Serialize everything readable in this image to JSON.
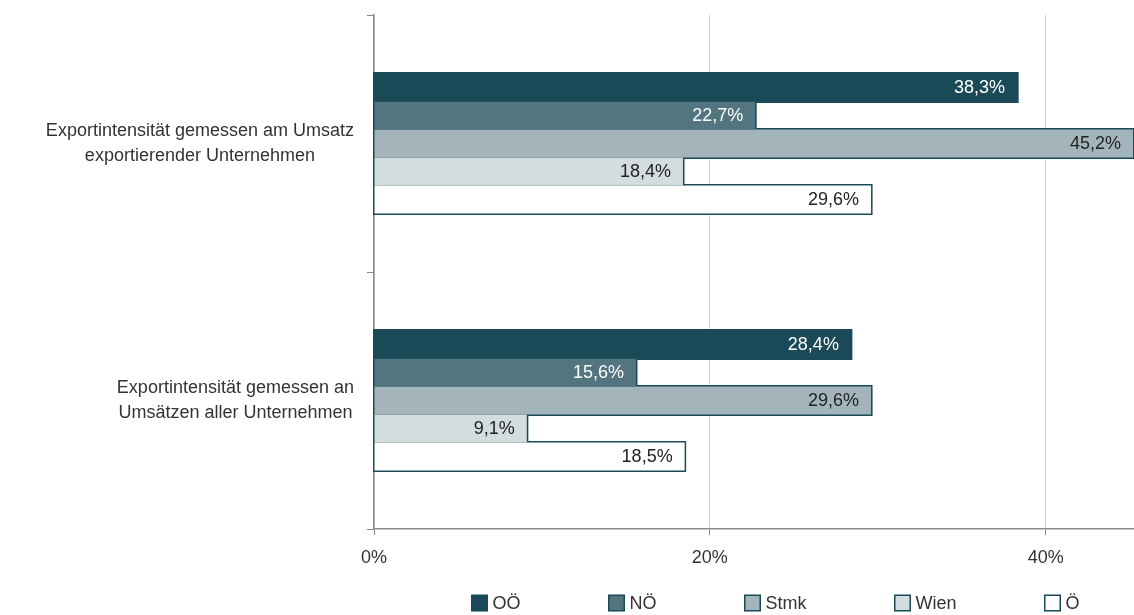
{
  "chart_data": {
    "type": "bar",
    "orientation": "horizontal",
    "categories": [
      "Exportintensität gemessen am Umsatz exportierender Unternehmen",
      "Exportintensität gemessen an Umsätzen aller Unternehmen"
    ],
    "series": [
      {
        "name": "OÖ",
        "color": "#1a4957",
        "values": [
          38.3,
          28.4
        ],
        "value_labels": [
          "38,3%",
          "28,4%"
        ]
      },
      {
        "name": "NÖ",
        "color": "#52757f",
        "values": [
          22.7,
          15.6
        ],
        "value_labels": [
          "22,7%",
          "15,6%"
        ]
      },
      {
        "name": "Stmk",
        "color": "#a3b5ba",
        "values": [
          45.2,
          29.6
        ],
        "value_labels": [
          "45,2%",
          "29,6%"
        ]
      },
      {
        "name": "Wien",
        "color": "#d3dcde",
        "values": [
          18.4,
          9.1
        ],
        "value_labels": [
          "18,4%",
          "9,1%"
        ]
      },
      {
        "name": "Ö",
        "color": "#ffffff",
        "values": [
          29.6,
          18.5
        ],
        "value_labels": [
          "29,6%",
          "18,5%"
        ]
      }
    ],
    "xlim": [
      0,
      45.2
    ],
    "xticks": [
      {
        "value": 0,
        "label": "0%"
      },
      {
        "value": 20,
        "label": "20%"
      },
      {
        "value": 40,
        "label": "40%"
      }
    ],
    "grid": "x",
    "legend": "bottom"
  }
}
